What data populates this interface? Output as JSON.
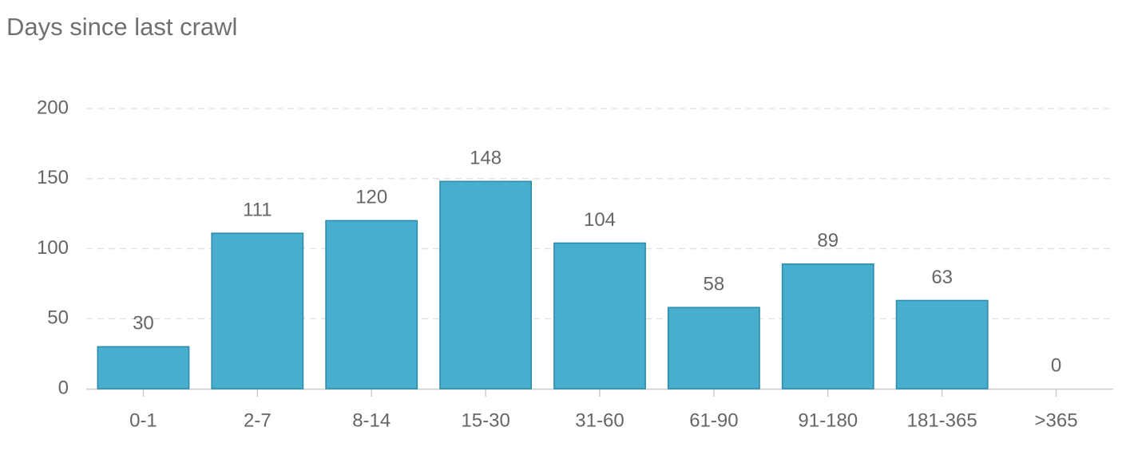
{
  "chart_data": {
    "type": "bar",
    "title": "Days since last crawl",
    "categories": [
      "0-1",
      "2-7",
      "8-14",
      "15-30",
      "31-60",
      "61-90",
      "91-180",
      "181-365",
      ">365"
    ],
    "values": [
      30,
      111,
      120,
      148,
      104,
      58,
      89,
      63,
      0
    ],
    "color": "#47afcd",
    "ylim": [
      0,
      200
    ],
    "yticks": [
      0,
      50,
      100,
      150,
      200
    ],
    "grid": true
  }
}
